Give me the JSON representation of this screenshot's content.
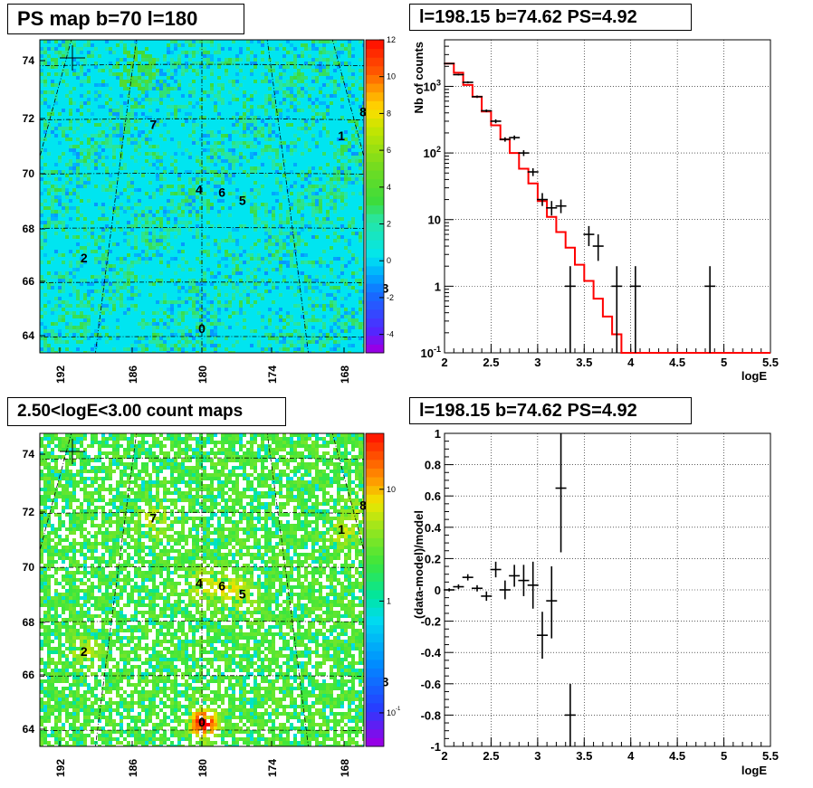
{
  "titles": {
    "map1": "PS map b=70 l=180",
    "spectrum": "l=198.15 b=74.62 PS=4.92",
    "map2": "2.50<logE<3.00 count maps",
    "residual": "l=198.15 b=74.62 PS=4.92"
  },
  "colors": {
    "model_line": "#ff0000",
    "data_points": "#000000",
    "map_background": "#00e5f0",
    "count_background": "#40e040"
  },
  "chart_data": [
    {
      "type": "heatmap",
      "title": "PS map b=70 l=180",
      "x_tick_labels": [
        "192",
        "186",
        "180",
        "174",
        "168"
      ],
      "y_tick_labels": [
        "64",
        "66",
        "68",
        "70",
        "72",
        "74"
      ],
      "colorbar": {
        "scale": "linear",
        "range": [
          -5,
          12
        ],
        "tick_labels": [
          "-4",
          "-2",
          "0",
          "2",
          "4",
          "6",
          "8",
          "10",
          "12"
        ]
      },
      "sources": [
        {
          "label": "0",
          "l": 180.0,
          "b": 64.3
        },
        {
          "label": "1",
          "l": 169.3,
          "b": 71.4
        },
        {
          "label": "2",
          "l": 187.5,
          "b": 66.9
        },
        {
          "label": "3",
          "l": 168.8,
          "b": 65.8
        },
        {
          "label": "4",
          "l": 180.2,
          "b": 69.4
        },
        {
          "label": "5",
          "l": 177.2,
          "b": 69.0
        },
        {
          "label": "6",
          "l": 178.6,
          "b": 69.3
        },
        {
          "label": "7",
          "l": 183.8,
          "b": 71.8
        },
        {
          "label": "8",
          "l": 167.1,
          "b": 72.3
        }
      ],
      "marker": {
        "l": 198.15,
        "b": 74.62
      }
    },
    {
      "type": "line",
      "title": "l=198.15 b=74.62 PS=4.92",
      "xlabel": "logE",
      "ylabel": "Nb of counts",
      "xlim": [
        2,
        5.5
      ],
      "ylim": [
        0.1,
        5000
      ],
      "y_scale": "log",
      "x_tick_labels": [
        "2",
        "2.5",
        "3",
        "3.5",
        "4",
        "4.5",
        "5",
        "5.5"
      ],
      "y_tick_labels": [
        "10^-1",
        "1",
        "10",
        "10^2",
        "10^3"
      ],
      "grid": true,
      "model_bins": {
        "edges": [
          2.0,
          2.1,
          2.2,
          2.3,
          2.4,
          2.5,
          2.6,
          2.7,
          2.8,
          2.9,
          3.0,
          3.1,
          3.2,
          3.3,
          3.4,
          3.5,
          3.6,
          3.7,
          3.8,
          3.9,
          4.0,
          5.5
        ],
        "values": [
          2200,
          1600,
          1050,
          700,
          420,
          260,
          160,
          100,
          58,
          35,
          19,
          11,
          6.5,
          3.8,
          2.1,
          1.2,
          0.65,
          0.35,
          0.19,
          0.1,
          0.1
        ]
      },
      "points": [
        {
          "x": 2.05,
          "y": 2200,
          "ylo": 2150,
          "yhi": 2250
        },
        {
          "x": 2.15,
          "y": 1500,
          "ylo": 1460,
          "yhi": 1540
        },
        {
          "x": 2.25,
          "y": 1150,
          "ylo": 1110,
          "yhi": 1190
        },
        {
          "x": 2.35,
          "y": 700,
          "ylo": 670,
          "yhi": 730
        },
        {
          "x": 2.45,
          "y": 430,
          "ylo": 410,
          "yhi": 450
        },
        {
          "x": 2.55,
          "y": 300,
          "ylo": 280,
          "yhi": 320
        },
        {
          "x": 2.65,
          "y": 160,
          "ylo": 148,
          "yhi": 172
        },
        {
          "x": 2.75,
          "y": 170,
          "ylo": 157,
          "yhi": 183
        },
        {
          "x": 2.85,
          "y": 100,
          "ylo": 90,
          "yhi": 110
        },
        {
          "x": 2.95,
          "y": 52,
          "ylo": 45,
          "yhi": 59
        },
        {
          "x": 3.05,
          "y": 20,
          "ylo": 16,
          "yhi": 25
        },
        {
          "x": 3.15,
          "y": 15,
          "ylo": 11.5,
          "yhi": 19
        },
        {
          "x": 3.25,
          "y": 16,
          "ylo": 12.5,
          "yhi": 20
        },
        {
          "x": 3.35,
          "y": 1,
          "ylo": 0.1,
          "yhi": 2
        },
        {
          "x": 3.55,
          "y": 6,
          "ylo": 4,
          "yhi": 8
        },
        {
          "x": 3.65,
          "y": 4,
          "ylo": 2.4,
          "yhi": 6
        },
        {
          "x": 3.85,
          "y": 1,
          "ylo": 0.1,
          "yhi": 2
        },
        {
          "x": 4.05,
          "y": 1,
          "ylo": 0.1,
          "yhi": 2
        },
        {
          "x": 4.85,
          "y": 1,
          "ylo": 0.1,
          "yhi": 2
        }
      ]
    },
    {
      "type": "heatmap",
      "title": "2.50<logE<3.00 count maps",
      "x_tick_labels": [
        "192",
        "186",
        "180",
        "174",
        "168"
      ],
      "y_tick_labels": [
        "64",
        "66",
        "68",
        "70",
        "72",
        "74"
      ],
      "colorbar": {
        "scale": "log",
        "tick_labels": [
          "10^-1",
          "1",
          "10"
        ]
      },
      "sources": [
        {
          "label": "0",
          "l": 180.0,
          "b": 64.3
        },
        {
          "label": "1",
          "l": 169.3,
          "b": 71.4
        },
        {
          "label": "2",
          "l": 187.5,
          "b": 66.9
        },
        {
          "label": "3",
          "l": 168.8,
          "b": 65.8
        },
        {
          "label": "4",
          "l": 180.2,
          "b": 69.4
        },
        {
          "label": "5",
          "l": 177.2,
          "b": 69.0
        },
        {
          "label": "6",
          "l": 178.6,
          "b": 69.3
        },
        {
          "label": "7",
          "l": 183.8,
          "b": 71.8
        },
        {
          "label": "8",
          "l": 167.1,
          "b": 72.3
        }
      ],
      "marker": {
        "l": 198.15,
        "b": 74.62
      }
    },
    {
      "type": "scatter",
      "title": "l=198.15 b=74.62 PS=4.92",
      "xlabel": "logE",
      "ylabel": "(data-model)/model",
      "xlim": [
        2,
        5.5
      ],
      "ylim": [
        -1,
        1
      ],
      "x_tick_labels": [
        "2",
        "2.5",
        "3",
        "3.5",
        "4",
        "4.5",
        "5",
        "5.5"
      ],
      "y_tick_labels": [
        "-1",
        "-0.8",
        "-0.6",
        "-0.4",
        "-0.2",
        "0",
        "0.2",
        "0.4",
        "0.6",
        "0.8",
        "1"
      ],
      "grid": true,
      "points": [
        {
          "x": 2.05,
          "y": 0.0,
          "ylo": -0.01,
          "yhi": 0.01
        },
        {
          "x": 2.15,
          "y": 0.02,
          "ylo": 0.005,
          "yhi": 0.035
        },
        {
          "x": 2.25,
          "y": 0.08,
          "ylo": 0.06,
          "yhi": 0.1
        },
        {
          "x": 2.35,
          "y": 0.01,
          "ylo": -0.01,
          "yhi": 0.03
        },
        {
          "x": 2.45,
          "y": -0.04,
          "ylo": -0.07,
          "yhi": -0.01
        },
        {
          "x": 2.55,
          "y": 0.13,
          "ylo": 0.08,
          "yhi": 0.18
        },
        {
          "x": 2.65,
          "y": 0.0,
          "ylo": -0.06,
          "yhi": 0.06
        },
        {
          "x": 2.75,
          "y": 0.09,
          "ylo": 0.02,
          "yhi": 0.16
        },
        {
          "x": 2.85,
          "y": 0.06,
          "ylo": -0.04,
          "yhi": 0.16
        },
        {
          "x": 2.95,
          "y": 0.03,
          "ylo": -0.12,
          "yhi": 0.18
        },
        {
          "x": 3.05,
          "y": -0.29,
          "ylo": -0.44,
          "yhi": -0.14
        },
        {
          "x": 3.15,
          "y": -0.07,
          "ylo": -0.31,
          "yhi": 0.15
        },
        {
          "x": 3.25,
          "y": 0.65,
          "ylo": 0.24,
          "yhi": 1.0
        },
        {
          "x": 3.35,
          "y": -0.8,
          "ylo": -1.0,
          "yhi": -0.6
        }
      ]
    }
  ]
}
